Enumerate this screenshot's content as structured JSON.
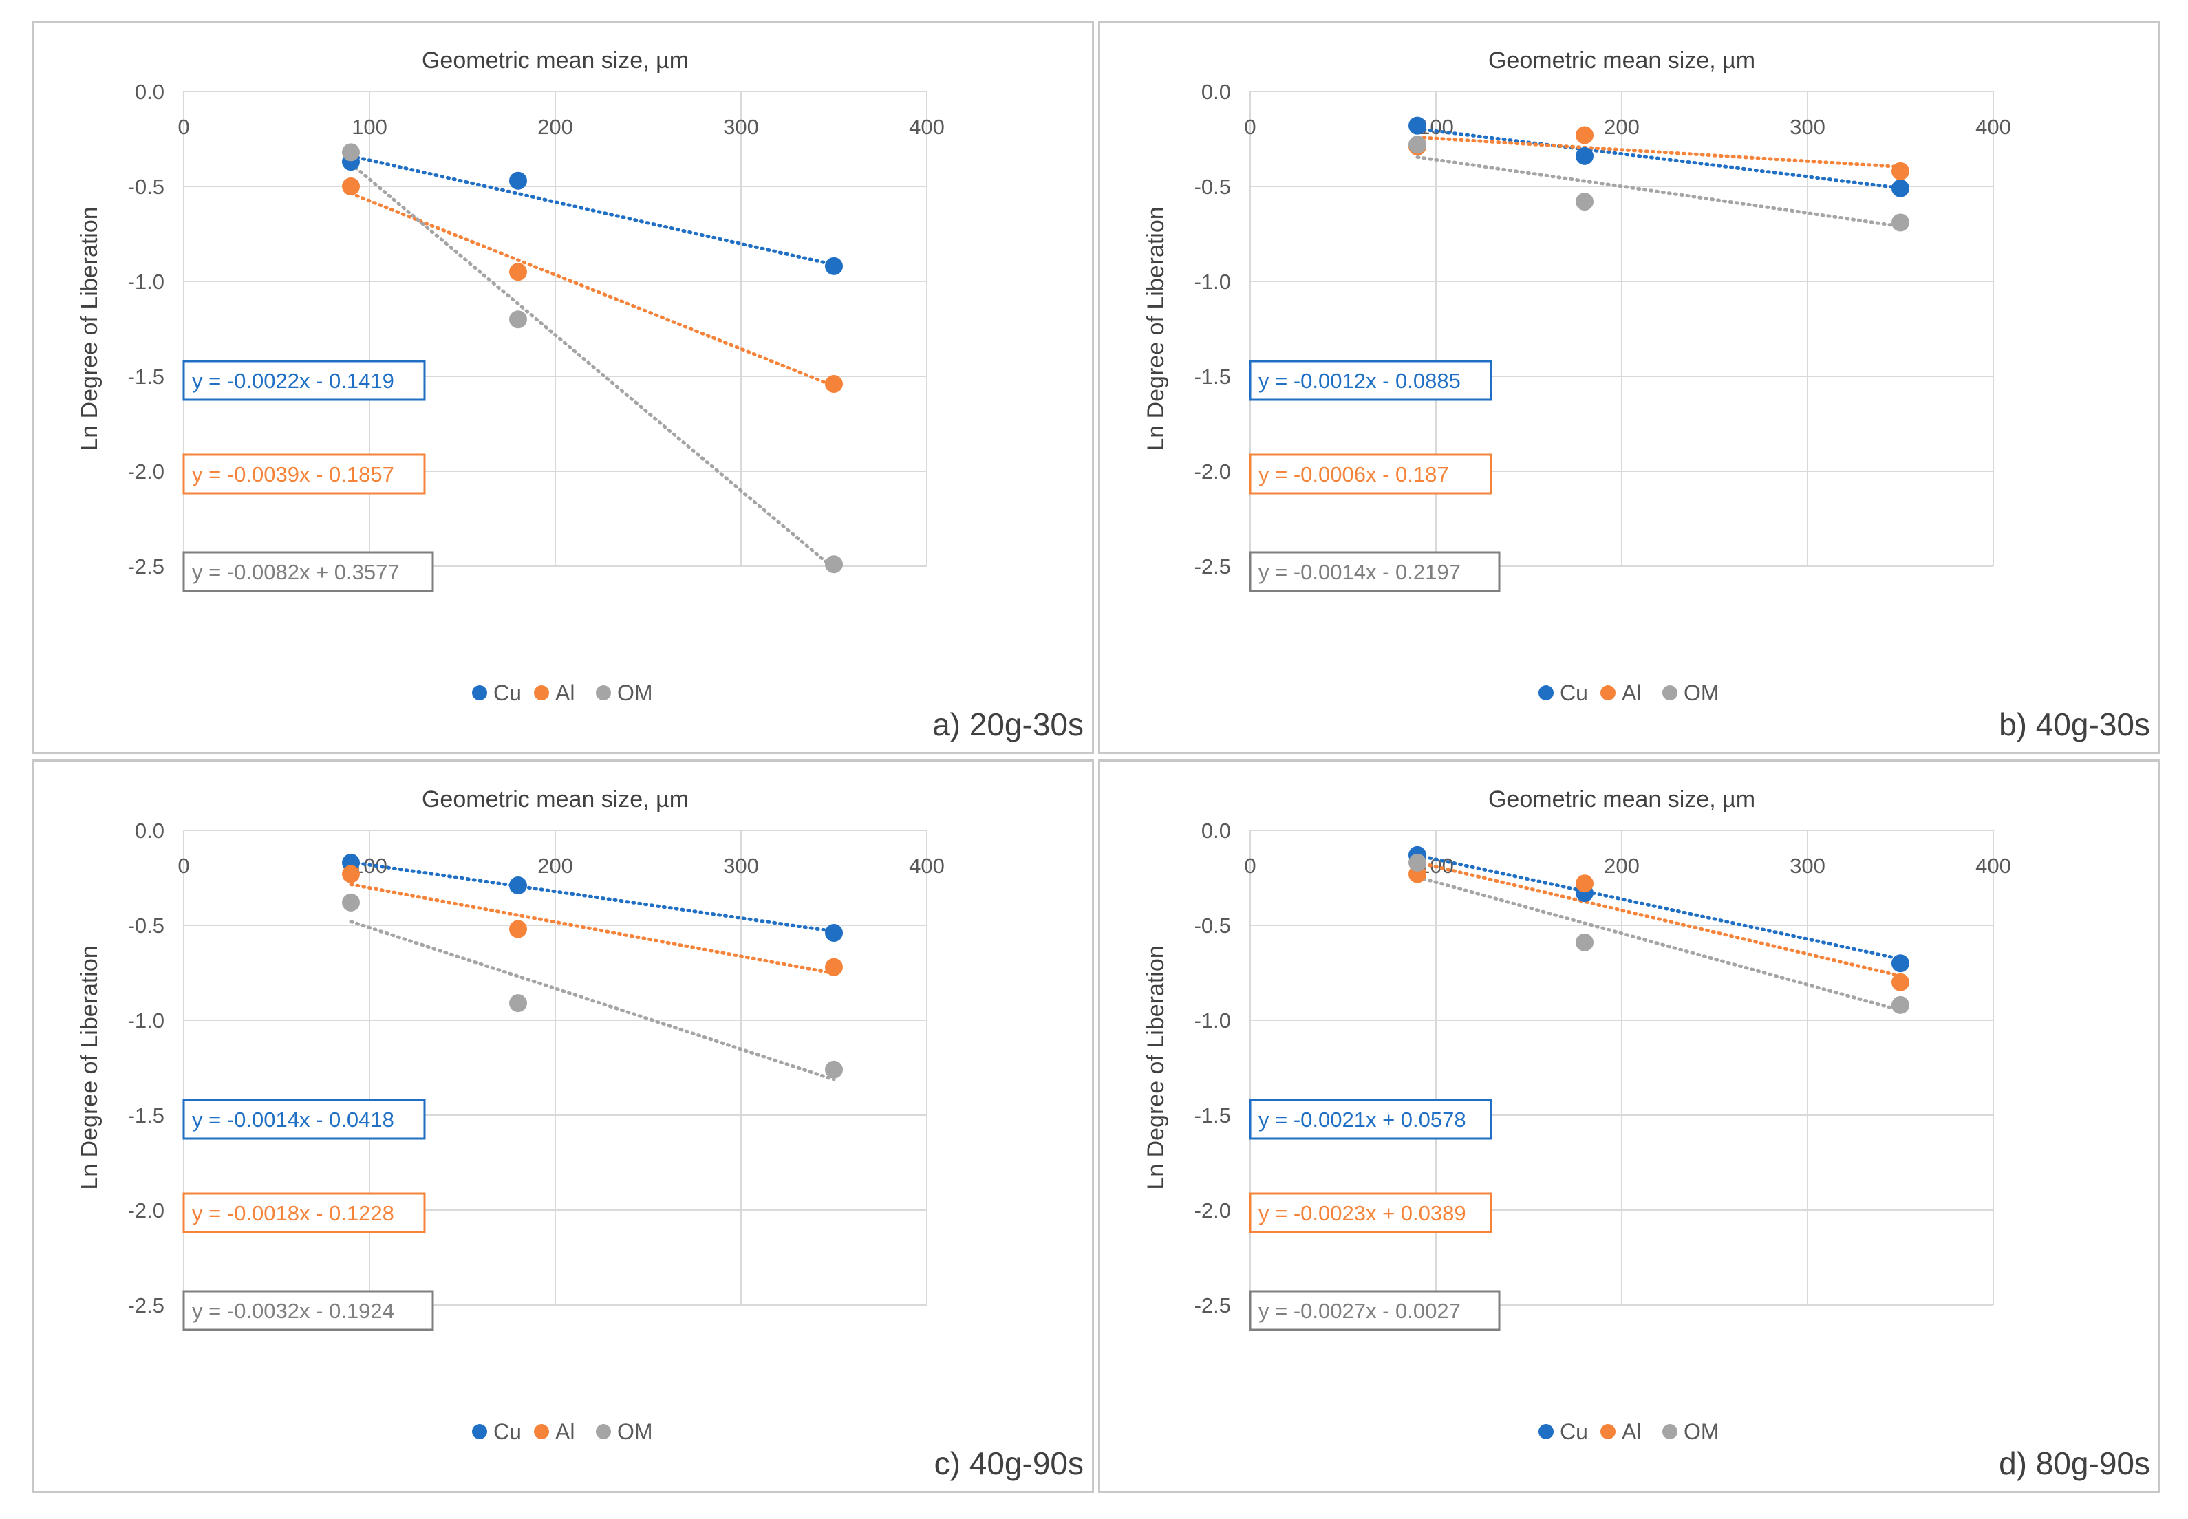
{
  "colors": {
    "Cu": "#1f6fc5",
    "Al": "#f5843a",
    "OM": "#a5a5a5",
    "grid": "#d9d9d9"
  },
  "chart_data": [
    {
      "type": "scatter",
      "panel_label": "a) 20g-30s",
      "title": "Geometric mean size, µm",
      "xlabel": "Geometric mean size, µm",
      "ylabel": "Ln Degree of Liberation",
      "xlim": [
        0,
        400
      ],
      "ylim": [
        -2.5,
        0
      ],
      "xticks": [
        "0",
        "100",
        "200",
        "300",
        "400"
      ],
      "yticks": [
        "0.0",
        "-0.5",
        "-1.0",
        "-1.5",
        "-2.0",
        "-2.5"
      ],
      "legend": [
        "Cu",
        "Al",
        "OM"
      ],
      "series": [
        {
          "name": "Cu",
          "x": [
            90,
            180,
            350
          ],
          "y": [
            -0.37,
            -0.47,
            -0.92
          ],
          "equation": "y = -0.0022x - 0.1419",
          "slope": -0.0022,
          "intercept": -0.1419
        },
        {
          "name": "Al",
          "x": [
            90,
            180,
            350
          ],
          "y": [
            -0.5,
            -0.95,
            -1.54
          ],
          "equation": "y = -0.0039x - 0.1857",
          "slope": -0.0039,
          "intercept": -0.1857
        },
        {
          "name": "OM",
          "x": [
            90,
            180,
            350
          ],
          "y": [
            -0.32,
            -1.2,
            -2.49
          ],
          "equation": "y = -0.0082x + 0.3577",
          "slope": -0.0082,
          "intercept": 0.3577
        }
      ]
    },
    {
      "type": "scatter",
      "panel_label": "b) 40g-30s",
      "title": "Geometric mean size, µm",
      "xlabel": "Geometric mean size, µm",
      "ylabel": "Ln Degree of Liberation",
      "xlim": [
        0,
        400
      ],
      "ylim": [
        -2.5,
        0
      ],
      "xticks": [
        "0",
        "100",
        "200",
        "300",
        "400"
      ],
      "yticks": [
        "0.0",
        "-0.5",
        "-1.0",
        "-1.5",
        "-2.0",
        "-2.5"
      ],
      "legend": [
        "Cu",
        "Al",
        "OM"
      ],
      "series": [
        {
          "name": "Cu",
          "x": [
            90,
            180,
            350
          ],
          "y": [
            -0.18,
            -0.34,
            -0.51
          ],
          "equation": "y = -0.0012x - 0.0885",
          "slope": -0.0012,
          "intercept": -0.0885
        },
        {
          "name": "Al",
          "x": [
            90,
            180,
            350
          ],
          "y": [
            -0.29,
            -0.23,
            -0.42
          ],
          "equation": "y = -0.0006x - 0.187",
          "slope": -0.0006,
          "intercept": -0.187
        },
        {
          "name": "OM",
          "x": [
            90,
            180,
            350
          ],
          "y": [
            -0.28,
            -0.58,
            -0.69
          ],
          "equation": "y = -0.0014x - 0.2197",
          "slope": -0.0014,
          "intercept": -0.2197
        }
      ]
    },
    {
      "type": "scatter",
      "panel_label": "c) 40g-90s",
      "title": "Geometric mean size, µm",
      "xlabel": "Geometric mean size, µm",
      "ylabel": "Ln Degree of Liberation",
      "xlim": [
        0,
        400
      ],
      "ylim": [
        -2.5,
        0
      ],
      "xticks": [
        "0",
        "100",
        "200",
        "300",
        "400"
      ],
      "yticks": [
        "0.0",
        "-0.5",
        "-1.0",
        "-1.5",
        "-2.0",
        "-2.5"
      ],
      "legend": [
        "Cu",
        "Al",
        "OM"
      ],
      "series": [
        {
          "name": "Cu",
          "x": [
            90,
            180,
            350
          ],
          "y": [
            -0.17,
            -0.29,
            -0.54
          ],
          "equation": "y = -0.0014x - 0.0418",
          "slope": -0.0014,
          "intercept": -0.0418
        },
        {
          "name": "Al",
          "x": [
            90,
            180,
            350
          ],
          "y": [
            -0.23,
            -0.52,
            -0.72
          ],
          "equation": "y = -0.0018x - 0.1228",
          "slope": -0.0018,
          "intercept": -0.1228
        },
        {
          "name": "OM",
          "x": [
            90,
            180,
            350
          ],
          "y": [
            -0.38,
            -0.91,
            -1.26
          ],
          "equation": "y = -0.0032x - 0.1924",
          "slope": -0.0032,
          "intercept": -0.1924
        }
      ]
    },
    {
      "type": "scatter",
      "panel_label": "d) 80g-90s",
      "title": "Geometric mean size, µm",
      "xlabel": "Geometric mean size, µm",
      "ylabel": "Ln Degree of Liberation",
      "xlim": [
        0,
        400
      ],
      "ylim": [
        -2.5,
        0
      ],
      "xticks": [
        "0",
        "100",
        "200",
        "300",
        "400"
      ],
      "yticks": [
        "0.0",
        "-0.5",
        "-1.0",
        "-1.5",
        "-2.0",
        "-2.5"
      ],
      "legend": [
        "Cu",
        "Al",
        "OM"
      ],
      "series": [
        {
          "name": "Cu",
          "x": [
            90,
            180,
            350
          ],
          "y": [
            -0.13,
            -0.33,
            -0.7
          ],
          "equation": "y = -0.0021x + 0.0578",
          "slope": -0.0021,
          "intercept": 0.0578
        },
        {
          "name": "Al",
          "x": [
            90,
            180,
            350
          ],
          "y": [
            -0.23,
            -0.28,
            -0.8
          ],
          "equation": "y = -0.0023x + 0.0389",
          "slope": -0.0023,
          "intercept": 0.0389
        },
        {
          "name": "OM",
          "x": [
            90,
            180,
            350
          ],
          "y": [
            -0.17,
            -0.59,
            -0.92
          ],
          "equation": "y = -0.0027x - 0.0027",
          "slope": -0.0027,
          "intercept": -0.0027
        }
      ]
    }
  ]
}
